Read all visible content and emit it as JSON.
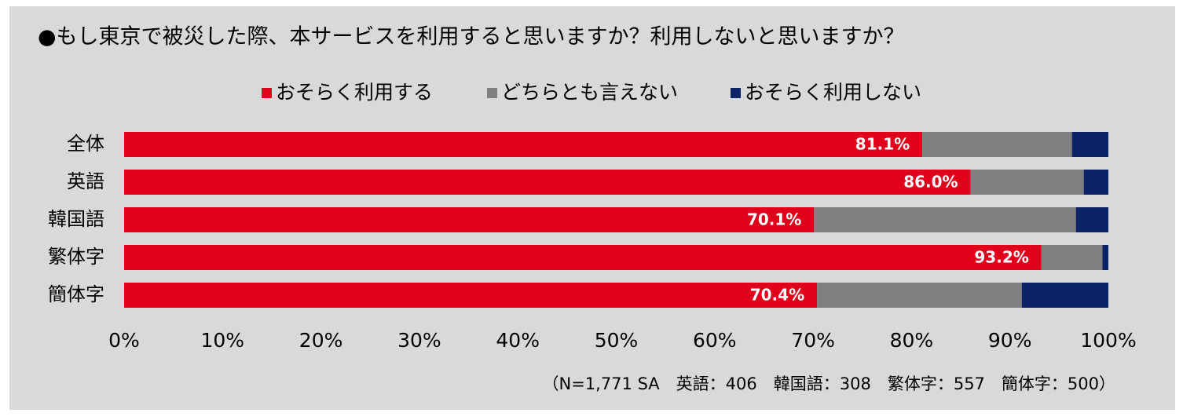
{
  "chart_data": {
    "type": "stacked_barh",
    "title": "●もし東京で被災した際、本サービスを利用すると思いますか？利用しないと思いますか？",
    "categories": [
      "全体",
      "英語",
      "韓国語",
      "繁体字",
      "簡体字"
    ],
    "series": [
      {
        "name": "おそらく利用する",
        "color": "#e0001b",
        "values": [
          81.1,
          86.0,
          70.1,
          93.2,
          70.4
        ],
        "value_labels": [
          "81.1%",
          "86.0%",
          "70.1%",
          "93.2%",
          "70.4%"
        ]
      },
      {
        "name": "どちらとも言えない",
        "color": "#808080",
        "values": [
          15.2,
          11.5,
          26.6,
          6.2,
          20.8
        ]
      },
      {
        "name": "おそらく利用しない",
        "color": "#0c2466",
        "values": [
          3.7,
          2.5,
          3.3,
          0.6,
          8.8
        ]
      }
    ],
    "xlim": [
      0,
      100
    ],
    "xticks": [
      {
        "value": 0,
        "label": "0%"
      },
      {
        "value": 10,
        "label": "10%"
      },
      {
        "value": 20,
        "label": "20%"
      },
      {
        "value": 30,
        "label": "30%"
      },
      {
        "value": 40,
        "label": "40%"
      },
      {
        "value": 50,
        "label": "50%"
      },
      {
        "value": 60,
        "label": "60%"
      },
      {
        "value": 70,
        "label": "70%"
      },
      {
        "value": 80,
        "label": "80%"
      },
      {
        "value": 90,
        "label": "90%"
      },
      {
        "value": 100,
        "label": "100%"
      }
    ],
    "legend": "top",
    "note": "（N=1,771 SA　英語：406　韓国語：308　繁体字：557　簡体字：500）"
  }
}
